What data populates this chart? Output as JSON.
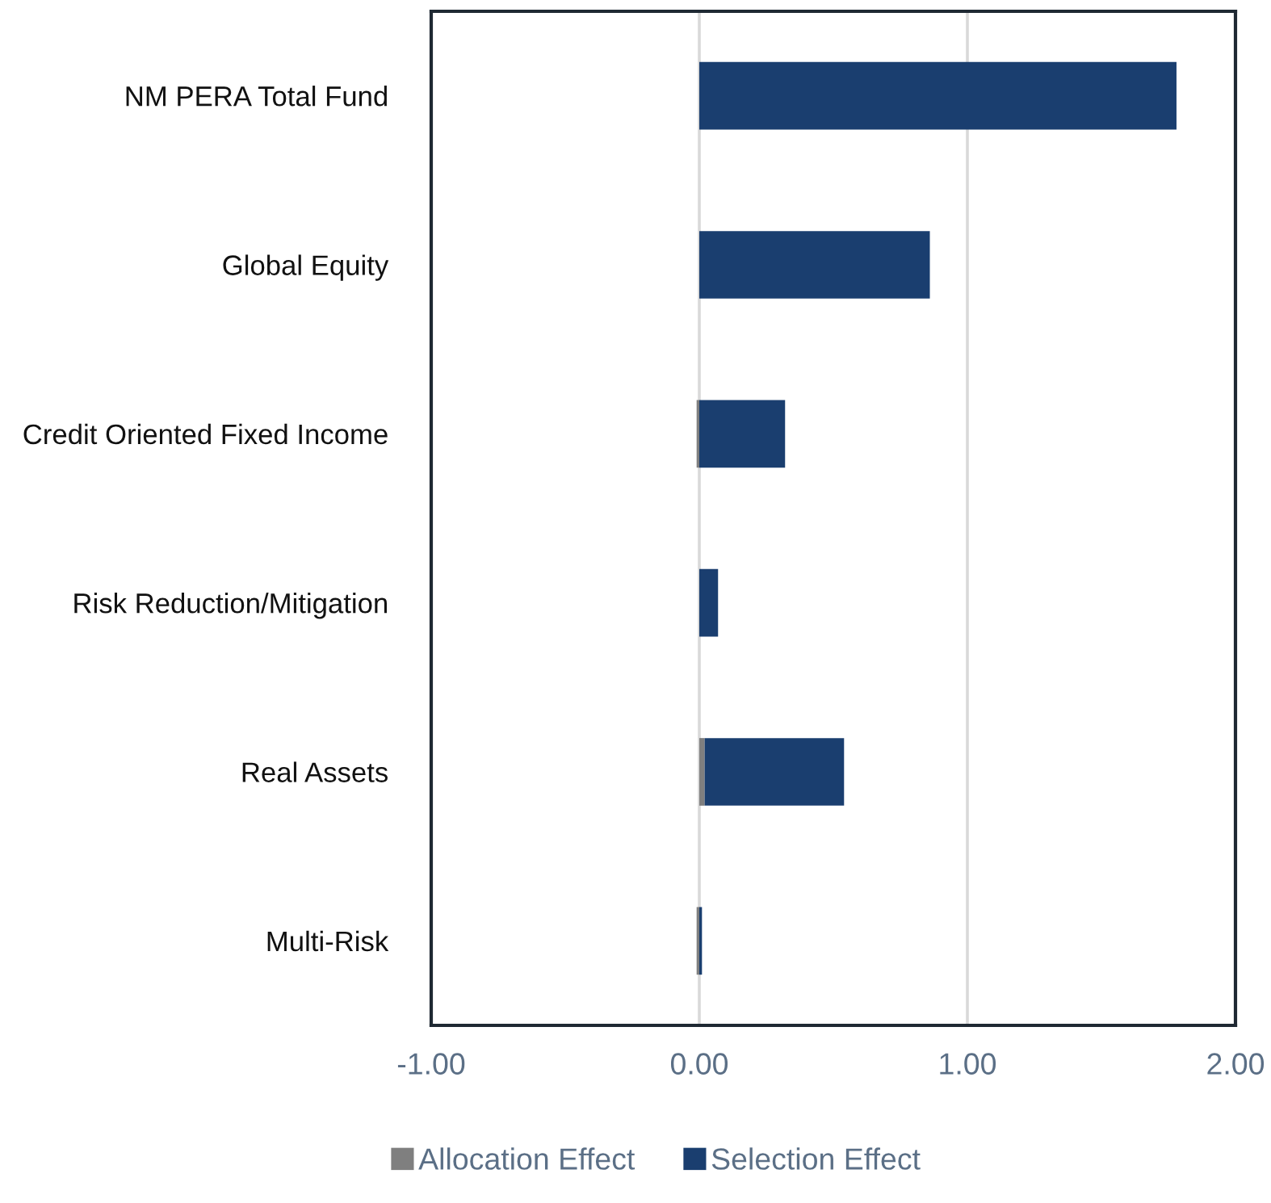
{
  "chart_data": {
    "type": "bar",
    "orientation": "horizontal",
    "stacked": true,
    "categories": [
      "NM PERA Total Fund",
      "Global Equity",
      "Credit Oriented Fixed Income",
      "Risk Reduction/Mitigation",
      "Real Assets",
      "Multi-Risk"
    ],
    "series": [
      {
        "name": "Allocation Effect",
        "color": "#7f7f7f",
        "values": [
          0.0,
          0.0,
          -0.01,
          0.0,
          0.02,
          -0.01
        ]
      },
      {
        "name": "Selection Effect",
        "color": "#1a3e6f",
        "values": [
          1.78,
          0.86,
          0.32,
          0.07,
          0.52,
          0.01
        ]
      }
    ],
    "xlim": [
      -1,
      2
    ],
    "xticks": [
      {
        "value": -1,
        "label": "-1.00"
      },
      {
        "value": 0,
        "label": "0.00"
      },
      {
        "value": 1,
        "label": "1.00"
      },
      {
        "value": 2,
        "label": "2.00"
      }
    ],
    "grid": "x",
    "legend": "bottom"
  }
}
